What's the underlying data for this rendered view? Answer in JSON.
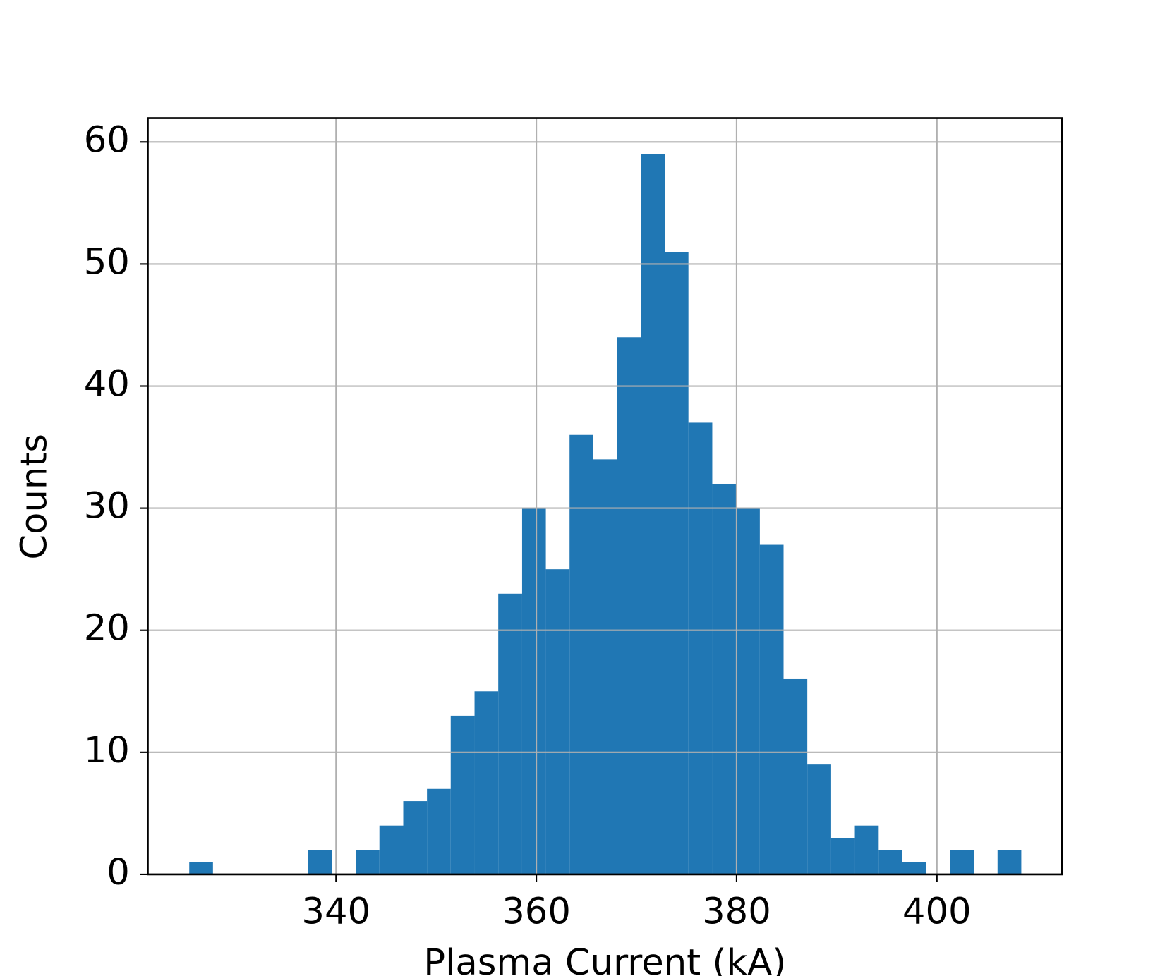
{
  "chart_data": {
    "type": "histogram",
    "x_label": "Plasma Current (kA)",
    "y_label": "Counts",
    "bins": [
      325.34,
      327.71,
      330.09,
      332.46,
      334.84,
      337.21,
      339.58,
      341.96,
      344.33,
      346.71,
      349.08,
      351.45,
      353.83,
      356.2,
      358.58,
      360.95,
      363.32,
      365.7,
      368.07,
      370.45,
      372.82,
      375.19,
      377.57,
      379.94,
      382.32,
      384.69,
      387.06,
      389.44,
      391.81,
      394.19,
      396.56,
      398.93,
      401.31,
      403.68,
      406.06,
      408.43
    ],
    "values": [
      1,
      0,
      0,
      0,
      0,
      2,
      0,
      2,
      4,
      6,
      7,
      13,
      15,
      23,
      30,
      25,
      36,
      34,
      44,
      59,
      51,
      37,
      32,
      30,
      27,
      16,
      9,
      3,
      4,
      2,
      1,
      0,
      2,
      0,
      2
    ],
    "color": "#2077b4",
    "xlim": [
      321.2,
      412.48
    ],
    "xticks": [
      340,
      360,
      380,
      400
    ],
    "ylim": [
      0,
      61.95
    ],
    "yticks": [
      0,
      10,
      20,
      30,
      40,
      50,
      60
    ],
    "grid": true
  }
}
